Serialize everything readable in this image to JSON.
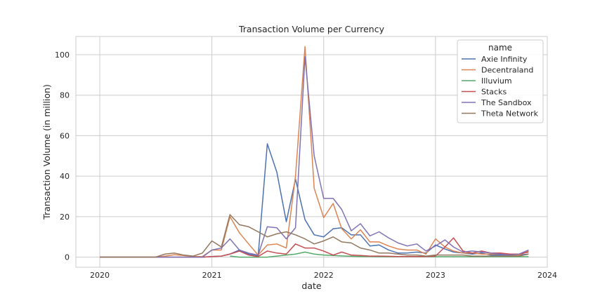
{
  "chart_data": {
    "type": "line",
    "title": "Transaction Volume per Currency",
    "xlabel": "date",
    "ylabel": "Transaction Volume (in million)",
    "x_ticks": [
      "2020",
      "2021",
      "2022",
      "2023",
      "2024"
    ],
    "y_ticks": [
      0,
      20,
      40,
      60,
      80,
      100
    ],
    "xlim": [
      "2019-10-15",
      "2024-01-01"
    ],
    "ylim": [
      -5,
      109
    ],
    "grid": true,
    "legend": {
      "title": "name",
      "placement": "top-right"
    },
    "x": [
      "2020-01",
      "2020-02",
      "2020-03",
      "2020-04",
      "2020-05",
      "2020-06",
      "2020-07",
      "2020-08",
      "2020-09",
      "2020-10",
      "2020-11",
      "2020-12",
      "2021-01",
      "2021-02",
      "2021-03",
      "2021-04",
      "2021-05",
      "2021-06",
      "2021-07",
      "2021-08",
      "2021-09",
      "2021-10",
      "2021-11",
      "2021-12",
      "2022-01",
      "2022-02",
      "2022-03",
      "2022-04",
      "2022-05",
      "2022-06",
      "2022-07",
      "2022-08",
      "2022-09",
      "2022-10",
      "2022-11",
      "2022-12",
      "2023-01",
      "2023-02",
      "2023-03",
      "2023-04",
      "2023-05",
      "2023-06",
      "2023-07",
      "2023-08",
      "2023-09",
      "2023-10",
      "2023-11"
    ],
    "series": [
      {
        "name": "Axie Infinity",
        "color": "#4c72b0",
        "values": [
          0,
          0,
          0,
          0,
          0,
          0,
          0,
          0,
          0,
          0,
          0,
          0,
          0.3,
          0.5,
          1.5,
          3.5,
          1.5,
          0.5,
          56,
          42,
          17.5,
          38.5,
          18.5,
          11,
          10,
          14,
          14.5,
          11,
          11,
          5.5,
          6,
          3.5,
          2,
          2,
          2.5,
          2,
          6,
          4,
          2.5,
          2,
          1.5,
          2,
          1,
          1,
          1,
          1,
          1.5
        ]
      },
      {
        "name": "Decentraland",
        "color": "#dd8452",
        "values": [
          0,
          0,
          0,
          0,
          0,
          0,
          0,
          0.5,
          1.2,
          0.8,
          0.3,
          0.3,
          3.5,
          3.5,
          20,
          12,
          6.5,
          1,
          6,
          6.5,
          4.5,
          40,
          104,
          34,
          19.5,
          26.5,
          14,
          9,
          13.5,
          7.5,
          7.5,
          5.5,
          4,
          3.5,
          3.5,
          1.5,
          9,
          5,
          3,
          2,
          2,
          1.5,
          1.5,
          1.5,
          1,
          1,
          3
        ]
      },
      {
        "name": "Illuvium",
        "color": "#55a868",
        "values": [
          null,
          null,
          null,
          null,
          null,
          null,
          null,
          null,
          null,
          null,
          null,
          null,
          null,
          null,
          0.5,
          0,
          0,
          0,
          0,
          0.5,
          1,
          1.5,
          2.5,
          1.5,
          1,
          0.8,
          0.6,
          0.4,
          0.3,
          0.3,
          0.2,
          0.2,
          0.2,
          0.2,
          0.2,
          0.2,
          0.2,
          0.2,
          0.2,
          0.2,
          0.2,
          0.2,
          0.2,
          0.2,
          0.2,
          0.2,
          0.2
        ]
      },
      {
        "name": "Stacks",
        "color": "#c44e52",
        "values": [
          0,
          0,
          0,
          0,
          0,
          0,
          0,
          0,
          0,
          0,
          0,
          0,
          0.3,
          0.5,
          1.5,
          3,
          1,
          0.3,
          3,
          2,
          1.5,
          6.5,
          4.5,
          4.5,
          3,
          1,
          2.5,
          1,
          0.8,
          0.5,
          0.5,
          0.4,
          0.3,
          0.3,
          0.3,
          0.3,
          0.5,
          5,
          9.5,
          3,
          2,
          3,
          2,
          2,
          1.5,
          1.5,
          2.5
        ]
      },
      {
        "name": "The Sandbox",
        "color": "#8172b3",
        "values": [
          0,
          0,
          0,
          0,
          0,
          0,
          0,
          0,
          0,
          0,
          0,
          0,
          3.5,
          4.5,
          9,
          3.5,
          2,
          1,
          15,
          14.5,
          9,
          14.5,
          99,
          50,
          29,
          29,
          23.5,
          13,
          16.5,
          10.5,
          12.5,
          9.5,
          7,
          5.5,
          6.5,
          3,
          5.5,
          8.5,
          5,
          2.5,
          3,
          2.5,
          2,
          1.5,
          1,
          1.5,
          3.5
        ]
      },
      {
        "name": "Theta Network",
        "color": "#937860",
        "values": [
          0,
          0,
          0,
          0,
          0,
          0,
          0,
          1.5,
          2,
          1,
          0.5,
          2,
          8,
          5,
          21,
          16,
          15,
          12.5,
          10,
          11.5,
          12.5,
          11,
          9,
          6.5,
          8,
          10,
          7.5,
          7,
          4.5,
          3.5,
          2,
          2,
          1.5,
          1,
          1,
          0.5,
          1,
          1,
          1,
          1,
          0.5,
          0.5,
          0.5,
          0.5,
          0.5,
          0.5,
          1.5
        ]
      }
    ]
  }
}
